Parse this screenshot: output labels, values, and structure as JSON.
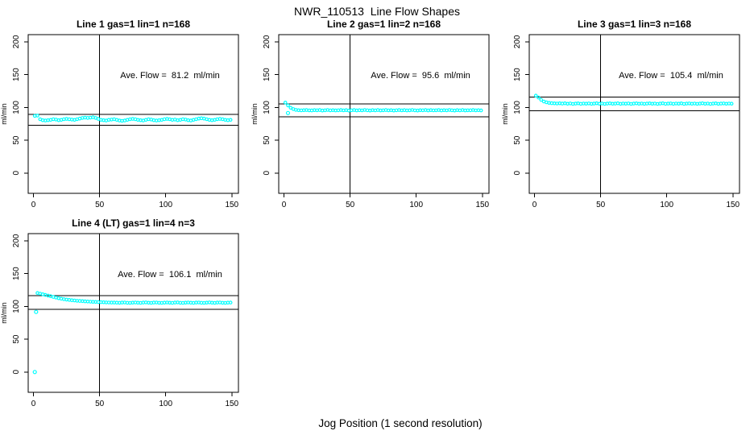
{
  "page": {
    "title": "NWR_110513  Line Flow Shapes",
    "xlabel": "Jog Position (1 second resolution)"
  },
  "style": {
    "marker_color": "#00FFFF",
    "line_color": "#000000",
    "background": "#FFFFFF"
  },
  "chart_data": [
    {
      "type": "scatter",
      "title": "Line 1 gas=1 lin=1 n=168",
      "annotation": "Ave. Flow =  81.2  ml/min",
      "avg_flow": 81.2,
      "ref_line_upper": 89.3,
      "ref_line_lower": 73.1,
      "vline_x": 50,
      "ylabel": "ml/min",
      "x_ticks": [
        0,
        50,
        100,
        150
      ],
      "y_ticks": [
        0,
        50,
        100,
        150,
        200
      ],
      "xlim": [
        -4,
        155
      ],
      "ylim": [
        -31,
        211
      ],
      "grid": false,
      "legend": false,
      "x": [
        1,
        3,
        5,
        7,
        9,
        11,
        13,
        15,
        17,
        19,
        21,
        23,
        25,
        27,
        29,
        31,
        33,
        35,
        37,
        39,
        41,
        43,
        45,
        47,
        49,
        51,
        53,
        55,
        57,
        59,
        61,
        63,
        65,
        67,
        69,
        71,
        73,
        75,
        77,
        79,
        81,
        83,
        85,
        87,
        89,
        91,
        93,
        95,
        97,
        99,
        101,
        103,
        105,
        107,
        109,
        111,
        113,
        115,
        117,
        119,
        121,
        123,
        125,
        127,
        129,
        131,
        133,
        135,
        137,
        139,
        141,
        143,
        145,
        147,
        149
      ],
      "y": [
        87,
        87.5,
        82,
        80.5,
        80,
        80.5,
        81,
        82,
        81.5,
        80.5,
        81,
        82,
        82.5,
        82,
        81.5,
        81,
        82,
        83,
        84,
        84.5,
        84,
        84.5,
        85,
        84,
        82.5,
        81,
        80.5,
        80,
        81,
        81.5,
        82,
        81,
        80,
        79.5,
        80,
        81,
        82,
        82.5,
        82,
        81,
        80.5,
        80,
        81,
        82,
        81.5,
        80.5,
        80,
        80.5,
        81,
        82,
        82.5,
        82,
        81,
        81.5,
        80.5,
        81,
        82,
        81.5,
        80.5,
        80,
        81,
        82,
        83,
        83.5,
        83,
        82,
        81,
        80.5,
        81,
        82,
        82.5,
        82,
        81,
        80.5,
        81
      ],
      "extra_points": []
    },
    {
      "type": "scatter",
      "title": "Line 2 gas=1 lin=2 n=168",
      "annotation": "Ave. Flow =  95.6  ml/min",
      "avg_flow": 95.6,
      "ref_line_upper": 105.2,
      "ref_line_lower": 86.0,
      "vline_x": 50,
      "ylabel": "ml/min",
      "x_ticks": [
        0,
        50,
        100,
        150
      ],
      "y_ticks": [
        0,
        50,
        100,
        150,
        200
      ],
      "xlim": [
        -4,
        155
      ],
      "ylim": [
        -31,
        211
      ],
      "grid": false,
      "legend": false,
      "x": [
        1,
        3,
        5,
        7,
        9,
        11,
        13,
        15,
        17,
        19,
        21,
        23,
        25,
        27,
        29,
        31,
        33,
        35,
        37,
        39,
        41,
        43,
        45,
        47,
        49,
        51,
        53,
        55,
        57,
        59,
        61,
        63,
        65,
        67,
        69,
        71,
        73,
        75,
        77,
        79,
        81,
        83,
        85,
        87,
        89,
        91,
        93,
        95,
        97,
        99,
        101,
        103,
        105,
        107,
        109,
        111,
        113,
        115,
        117,
        119,
        121,
        123,
        125,
        127,
        129,
        131,
        133,
        135,
        137,
        139,
        141,
        143,
        145,
        147,
        149
      ],
      "y": [
        107.5,
        103,
        99.5,
        97.5,
        96.3,
        95.8,
        95.5,
        95.8,
        96,
        95.5,
        95.4,
        95.9,
        95.6,
        96,
        95.3,
        95.7,
        96.1,
        95.5,
        95.8,
        95.4,
        95.6,
        96,
        95.5,
        95.9,
        95.3,
        95.7,
        96,
        95.4,
        95.8,
        95.5,
        96.1,
        95.6,
        95.3,
        95.9,
        95.5,
        96,
        95.4,
        95.7,
        96,
        95.5,
        95.8,
        95.3,
        95.6,
        96,
        95.5,
        95.9,
        95.4,
        95.7,
        96.1,
        95.5,
        95.3,
        95.8,
        95.6,
        96,
        95.4,
        95.9,
        95.5,
        95.7,
        96,
        95.4,
        95.8,
        95.5,
        96.1,
        95.6,
        95.3,
        95.9,
        95.5,
        96,
        95.4,
        95.7,
        95.6,
        96,
        95.5,
        95.8,
        95.4
      ],
      "extra_points": [
        [
          3,
          91.5
        ]
      ]
    },
    {
      "type": "scatter",
      "title": "Line 3 gas=1 lin=3 n=168",
      "annotation": "Ave. Flow =  105.4  ml/min",
      "avg_flow": 105.4,
      "ref_line_upper": 115.9,
      "ref_line_lower": 94.9,
      "vline_x": 50,
      "ylabel": "ml/min",
      "x_ticks": [
        0,
        50,
        100,
        150
      ],
      "y_ticks": [
        0,
        50,
        100,
        150,
        200
      ],
      "xlim": [
        -4,
        155
      ],
      "ylim": [
        -31,
        211
      ],
      "grid": false,
      "legend": false,
      "x": [
        1,
        3,
        5,
        7,
        9,
        11,
        13,
        15,
        17,
        19,
        21,
        23,
        25,
        27,
        29,
        31,
        33,
        35,
        37,
        39,
        41,
        43,
        45,
        47,
        49,
        51,
        53,
        55,
        57,
        59,
        61,
        63,
        65,
        67,
        69,
        71,
        73,
        75,
        77,
        79,
        81,
        83,
        85,
        87,
        89,
        91,
        93,
        95,
        97,
        99,
        101,
        103,
        105,
        107,
        109,
        111,
        113,
        115,
        117,
        119,
        121,
        123,
        125,
        127,
        129,
        131,
        133,
        135,
        137,
        139,
        141,
        143,
        145,
        147,
        149
      ],
      "y": [
        118,
        115,
        111.5,
        109,
        107.8,
        107,
        106.5,
        106.2,
        106,
        106.3,
        105.9,
        106.3,
        105.6,
        106.1,
        105.4,
        105.9,
        106.2,
        105.5,
        106,
        105.7,
        106.1,
        105.5,
        105.9,
        106.3,
        105.6,
        106,
        105.4,
        105.8,
        106.2,
        105.6,
        105.9,
        106.3,
        105.5,
        106,
        105.7,
        106.1,
        105.4,
        105.9,
        106.2,
        105.6,
        106,
        105.5,
        105.8,
        106.2,
        105.6,
        106,
        105.4,
        105.9,
        106.3,
        105.5,
        105.9,
        106.1,
        105.5,
        106,
        105.7,
        106.2,
        105.4,
        105.8,
        106.1,
        105.6,
        106,
        105.5,
        105.9,
        106.3,
        105.6,
        106,
        105.4,
        105.8,
        106.2,
        105.5,
        105.9,
        106.1,
        105.6,
        106,
        105.7
      ],
      "extra_points": []
    },
    {
      "type": "scatter",
      "title": "Line 4 (LT) gas=1 lin=4 n=3",
      "annotation": "Ave. Flow =  106.1  ml/min",
      "avg_flow": 106.1,
      "ref_line_upper": 116.7,
      "ref_line_lower": 95.5,
      "vline_x": 50,
      "ylabel": "ml/min",
      "x_ticks": [
        0,
        50,
        100,
        150
      ],
      "y_ticks": [
        0,
        50,
        100,
        150,
        200
      ],
      "xlim": [
        -4,
        155
      ],
      "ylim": [
        -31,
        211
      ],
      "grid": false,
      "legend": false,
      "x": [
        3,
        5,
        7,
        9,
        11,
        13,
        15,
        17,
        19,
        21,
        23,
        25,
        27,
        29,
        31,
        33,
        35,
        37,
        39,
        41,
        43,
        45,
        47,
        49,
        51,
        53,
        55,
        57,
        59,
        61,
        63,
        65,
        67,
        69,
        71,
        73,
        75,
        77,
        79,
        81,
        83,
        85,
        87,
        89,
        91,
        93,
        95,
        97,
        99,
        101,
        103,
        105,
        107,
        109,
        111,
        113,
        115,
        117,
        119,
        121,
        123,
        125,
        127,
        129,
        131,
        133,
        135,
        137,
        139,
        141,
        143,
        145,
        147,
        149
      ],
      "y": [
        120.5,
        119.5,
        118.5,
        117.5,
        116.5,
        115.5,
        114.5,
        113.5,
        112.5,
        111.8,
        111,
        110.4,
        109.9,
        109.4,
        109,
        108.6,
        108.3,
        108,
        107.7,
        107.4,
        107.2,
        107,
        106.8,
        106.6,
        106.4,
        106.3,
        106.1,
        106,
        105.9,
        105.8,
        105.7,
        105.5,
        105.8,
        106,
        105.5,
        105.3,
        105.7,
        106,
        105.6,
        105.3,
        105.8,
        106.1,
        105.6,
        105.4,
        105.8,
        106,
        105.5,
        105.3,
        105.7,
        106,
        105.6,
        105.4,
        105.8,
        106.1,
        105.5,
        105.3,
        105.7,
        106,
        105.6,
        105.4,
        105.8,
        106,
        105.5,
        105.3,
        105.7,
        106.1,
        105.6,
        105.4,
        105.8,
        106,
        105.5,
        105.3,
        105.7,
        105.9
      ],
      "extra_points": [
        [
          1,
          0
        ],
        [
          2,
          91.6
        ]
      ]
    }
  ]
}
